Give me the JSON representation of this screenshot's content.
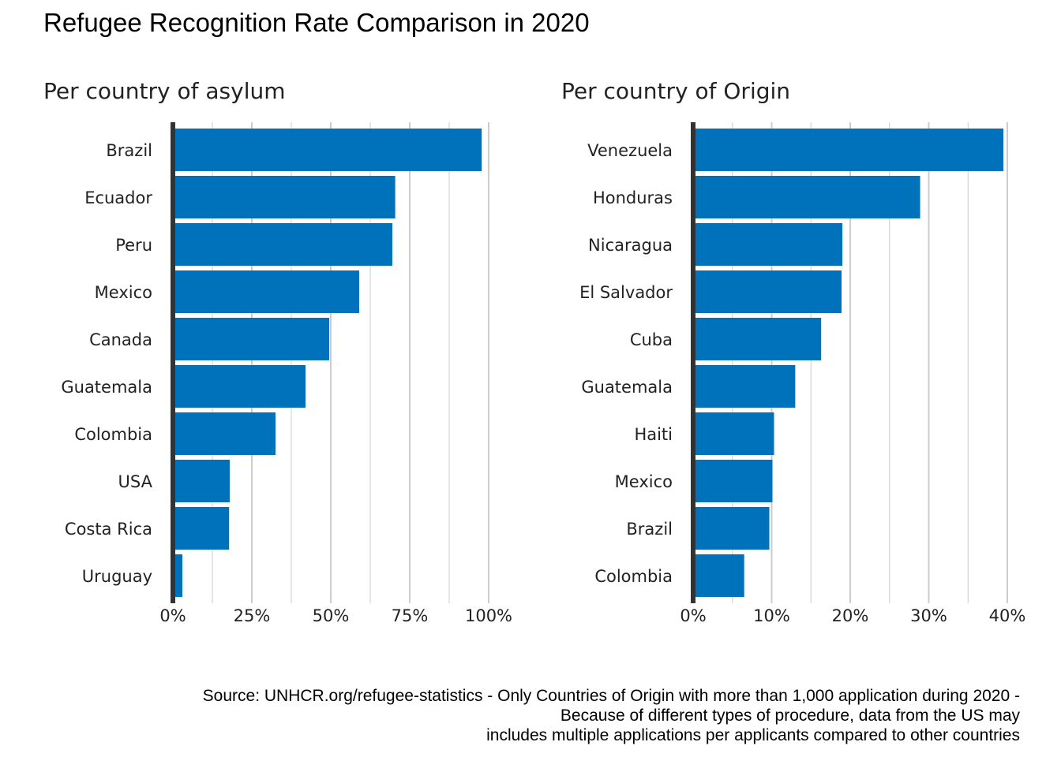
{
  "title": "Refugee Recognition Rate Comparison in 2020",
  "caption": [
    "Source: UNHCR.org/refugee-statistics - Only Countries of Origin with more than 1,000 application during 2020 -",
    "Because of different types of procedure, data from the US may",
    "includes multiple applications per applicants compared to other countries"
  ],
  "colors": {
    "bar": "#0072bc",
    "axis_line": "#333333",
    "grid": "#cccccc",
    "text": "#222222"
  },
  "chart_data": [
    {
      "type": "bar",
      "orientation": "horizontal",
      "title": "Per country of asylum",
      "xlabel": "",
      "ylabel": "",
      "categories": [
        "Brazil",
        "Ecuador",
        "Peru",
        "Mexico",
        "Canada",
        "Guatemala",
        "Colombia",
        "USA",
        "Costa Rica",
        "Uruguay"
      ],
      "values": [
        0.978,
        0.704,
        0.695,
        0.59,
        0.495,
        0.42,
        0.325,
        0.18,
        0.178,
        0.03
      ],
      "xlim": [
        0,
        1.0
      ],
      "ticks": [
        0,
        0.25,
        0.5,
        0.75,
        1.0
      ],
      "tick_labels": [
        "0%",
        "25%",
        "50%",
        "75%",
        "100%"
      ],
      "grid": true
    },
    {
      "type": "bar",
      "orientation": "horizontal",
      "title": "Per country of Origin",
      "xlabel": "",
      "ylabel": "",
      "categories": [
        "Venezuela",
        "Honduras",
        "Nicaragua",
        "El Salvador",
        "Cuba",
        "Guatemala",
        "Haiti",
        "Mexico",
        "Brazil",
        "Colombia"
      ],
      "values": [
        0.395,
        0.289,
        0.19,
        0.189,
        0.163,
        0.13,
        0.103,
        0.101,
        0.097,
        0.065
      ],
      "xlim": [
        0,
        0.4
      ],
      "ticks": [
        0,
        0.1,
        0.2,
        0.3,
        0.4
      ],
      "tick_labels": [
        "0%",
        "10%",
        "20%",
        "30%",
        "40%"
      ],
      "grid": true
    }
  ]
}
